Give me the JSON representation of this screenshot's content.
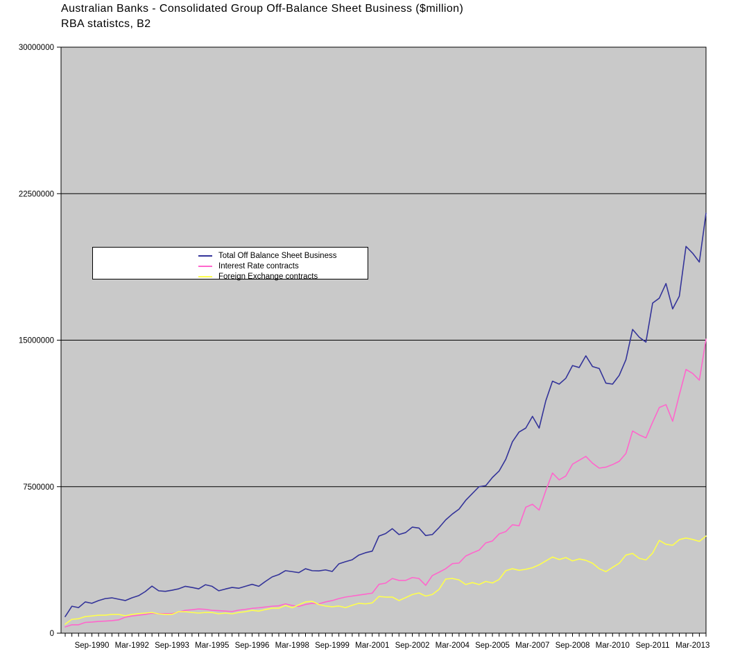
{
  "chart_data": {
    "type": "line",
    "title": "Australian Banks - Consolidated Group Off-Balance Sheet Business ($million)",
    "subtitle": "RBA statistcs, B2",
    "plot_bg": "#c9c9c9",
    "grid": true,
    "grid_color": "#000000",
    "legend_position": "upper-left-inside",
    "ylim": [
      0,
      30000000
    ],
    "y_ticks": [
      0,
      7500000,
      15000000,
      22500000,
      30000000
    ],
    "y_tick_labels": [
      "0",
      "7500000",
      "15000000",
      "22500000",
      "30000000"
    ],
    "x_axis": {
      "frequency": "quarterly",
      "start": "Sep-1989",
      "end": "Sep-2013",
      "n_points": 97,
      "first_label_index": 4,
      "label_every": 6
    },
    "x_tick_labels": [
      "Sep-1990",
      "Mar-1992",
      "Sep-1993",
      "Mar-1995",
      "Sep-1996",
      "Mar-1998",
      "Sep-1999",
      "Mar-2001",
      "Sep-2002",
      "Mar-2004",
      "Sep-2005",
      "Mar-2007",
      "Sep-2008",
      "Mar-2010",
      "Sep-2011",
      "Mar-2013"
    ],
    "series": [
      {
        "name": "Total Off Balance Sheet Business",
        "color": "#333399",
        "values": [
          850000,
          1380000,
          1310000,
          1600000,
          1530000,
          1670000,
          1770000,
          1810000,
          1740000,
          1670000,
          1810000,
          1920000,
          2130000,
          2410000,
          2170000,
          2140000,
          2200000,
          2270000,
          2400000,
          2340000,
          2270000,
          2480000,
          2400000,
          2170000,
          2260000,
          2340000,
          2300000,
          2400000,
          2500000,
          2400000,
          2650000,
          2880000,
          3000000,
          3200000,
          3150000,
          3100000,
          3300000,
          3200000,
          3190000,
          3240000,
          3160000,
          3550000,
          3660000,
          3760000,
          4000000,
          4120000,
          4200000,
          4970000,
          5100000,
          5350000,
          5050000,
          5150000,
          5430000,
          5380000,
          5000000,
          5050000,
          5400000,
          5800000,
          6100000,
          6350000,
          6800000,
          7150000,
          7500000,
          7550000,
          7970000,
          8300000,
          8900000,
          9800000,
          10300000,
          10500000,
          11100000,
          10500000,
          11900000,
          12900000,
          12750000,
          13050000,
          13700000,
          13600000,
          14200000,
          13650000,
          13550000,
          12800000,
          12750000,
          13200000,
          14000000,
          15550000,
          15150000,
          14900000,
          16900000,
          17150000,
          17900000,
          16600000,
          17250000,
          19800000,
          19450000,
          19000000,
          21500000
        ]
      },
      {
        "name": "Interest Rate contracts",
        "color": "#ff66cc",
        "values": [
          320000,
          430000,
          430000,
          550000,
          570000,
          600000,
          620000,
          640000,
          680000,
          820000,
          880000,
          920000,
          960000,
          1020000,
          1000000,
          1000000,
          1000000,
          1080000,
          1170000,
          1200000,
          1240000,
          1220000,
          1170000,
          1150000,
          1130000,
          1110000,
          1180000,
          1220000,
          1270000,
          1300000,
          1340000,
          1380000,
          1400000,
          1500000,
          1420000,
          1370000,
          1470000,
          1530000,
          1500000,
          1600000,
          1670000,
          1770000,
          1850000,
          1900000,
          1950000,
          2000000,
          2050000,
          2500000,
          2560000,
          2800000,
          2700000,
          2700000,
          2850000,
          2800000,
          2450000,
          2950000,
          3120000,
          3300000,
          3560000,
          3590000,
          3950000,
          4110000,
          4250000,
          4620000,
          4720000,
          5080000,
          5200000,
          5550000,
          5500000,
          6450000,
          6600000,
          6300000,
          7300000,
          8200000,
          7850000,
          8050000,
          8650000,
          8850000,
          9050000,
          8700000,
          8450000,
          8500000,
          8630000,
          8800000,
          9200000,
          10350000,
          10150000,
          10000000,
          10800000,
          11550000,
          11700000,
          10850000,
          12200000,
          13500000,
          13300000,
          12950000,
          15050000
        ]
      },
      {
        "name": "Foreign Exchange contracts",
        "color": "#ffff4d",
        "values": [
          460000,
          710000,
          740000,
          850000,
          880000,
          920000,
          920000,
          960000,
          960000,
          890000,
          960000,
          1000000,
          1030000,
          1060000,
          990000,
          960000,
          960000,
          1100000,
          1100000,
          1060000,
          1030000,
          1060000,
          1060000,
          990000,
          1030000,
          990000,
          1060000,
          1100000,
          1170000,
          1130000,
          1210000,
          1280000,
          1280000,
          1420000,
          1300000,
          1450000,
          1600000,
          1630000,
          1470000,
          1390000,
          1350000,
          1390000,
          1310000,
          1430000,
          1530000,
          1500000,
          1550000,
          1880000,
          1850000,
          1850000,
          1670000,
          1820000,
          1980000,
          2060000,
          1900000,
          1980000,
          2240000,
          2770000,
          2800000,
          2730000,
          2490000,
          2590000,
          2490000,
          2650000,
          2570000,
          2750000,
          3200000,
          3300000,
          3220000,
          3270000,
          3350000,
          3500000,
          3700000,
          3900000,
          3770000,
          3870000,
          3700000,
          3800000,
          3730000,
          3580000,
          3300000,
          3150000,
          3370000,
          3580000,
          4000000,
          4080000,
          3830000,
          3750000,
          4100000,
          4750000,
          4550000,
          4500000,
          4790000,
          4870000,
          4800000,
          4700000,
          4970000
        ]
      }
    ]
  }
}
